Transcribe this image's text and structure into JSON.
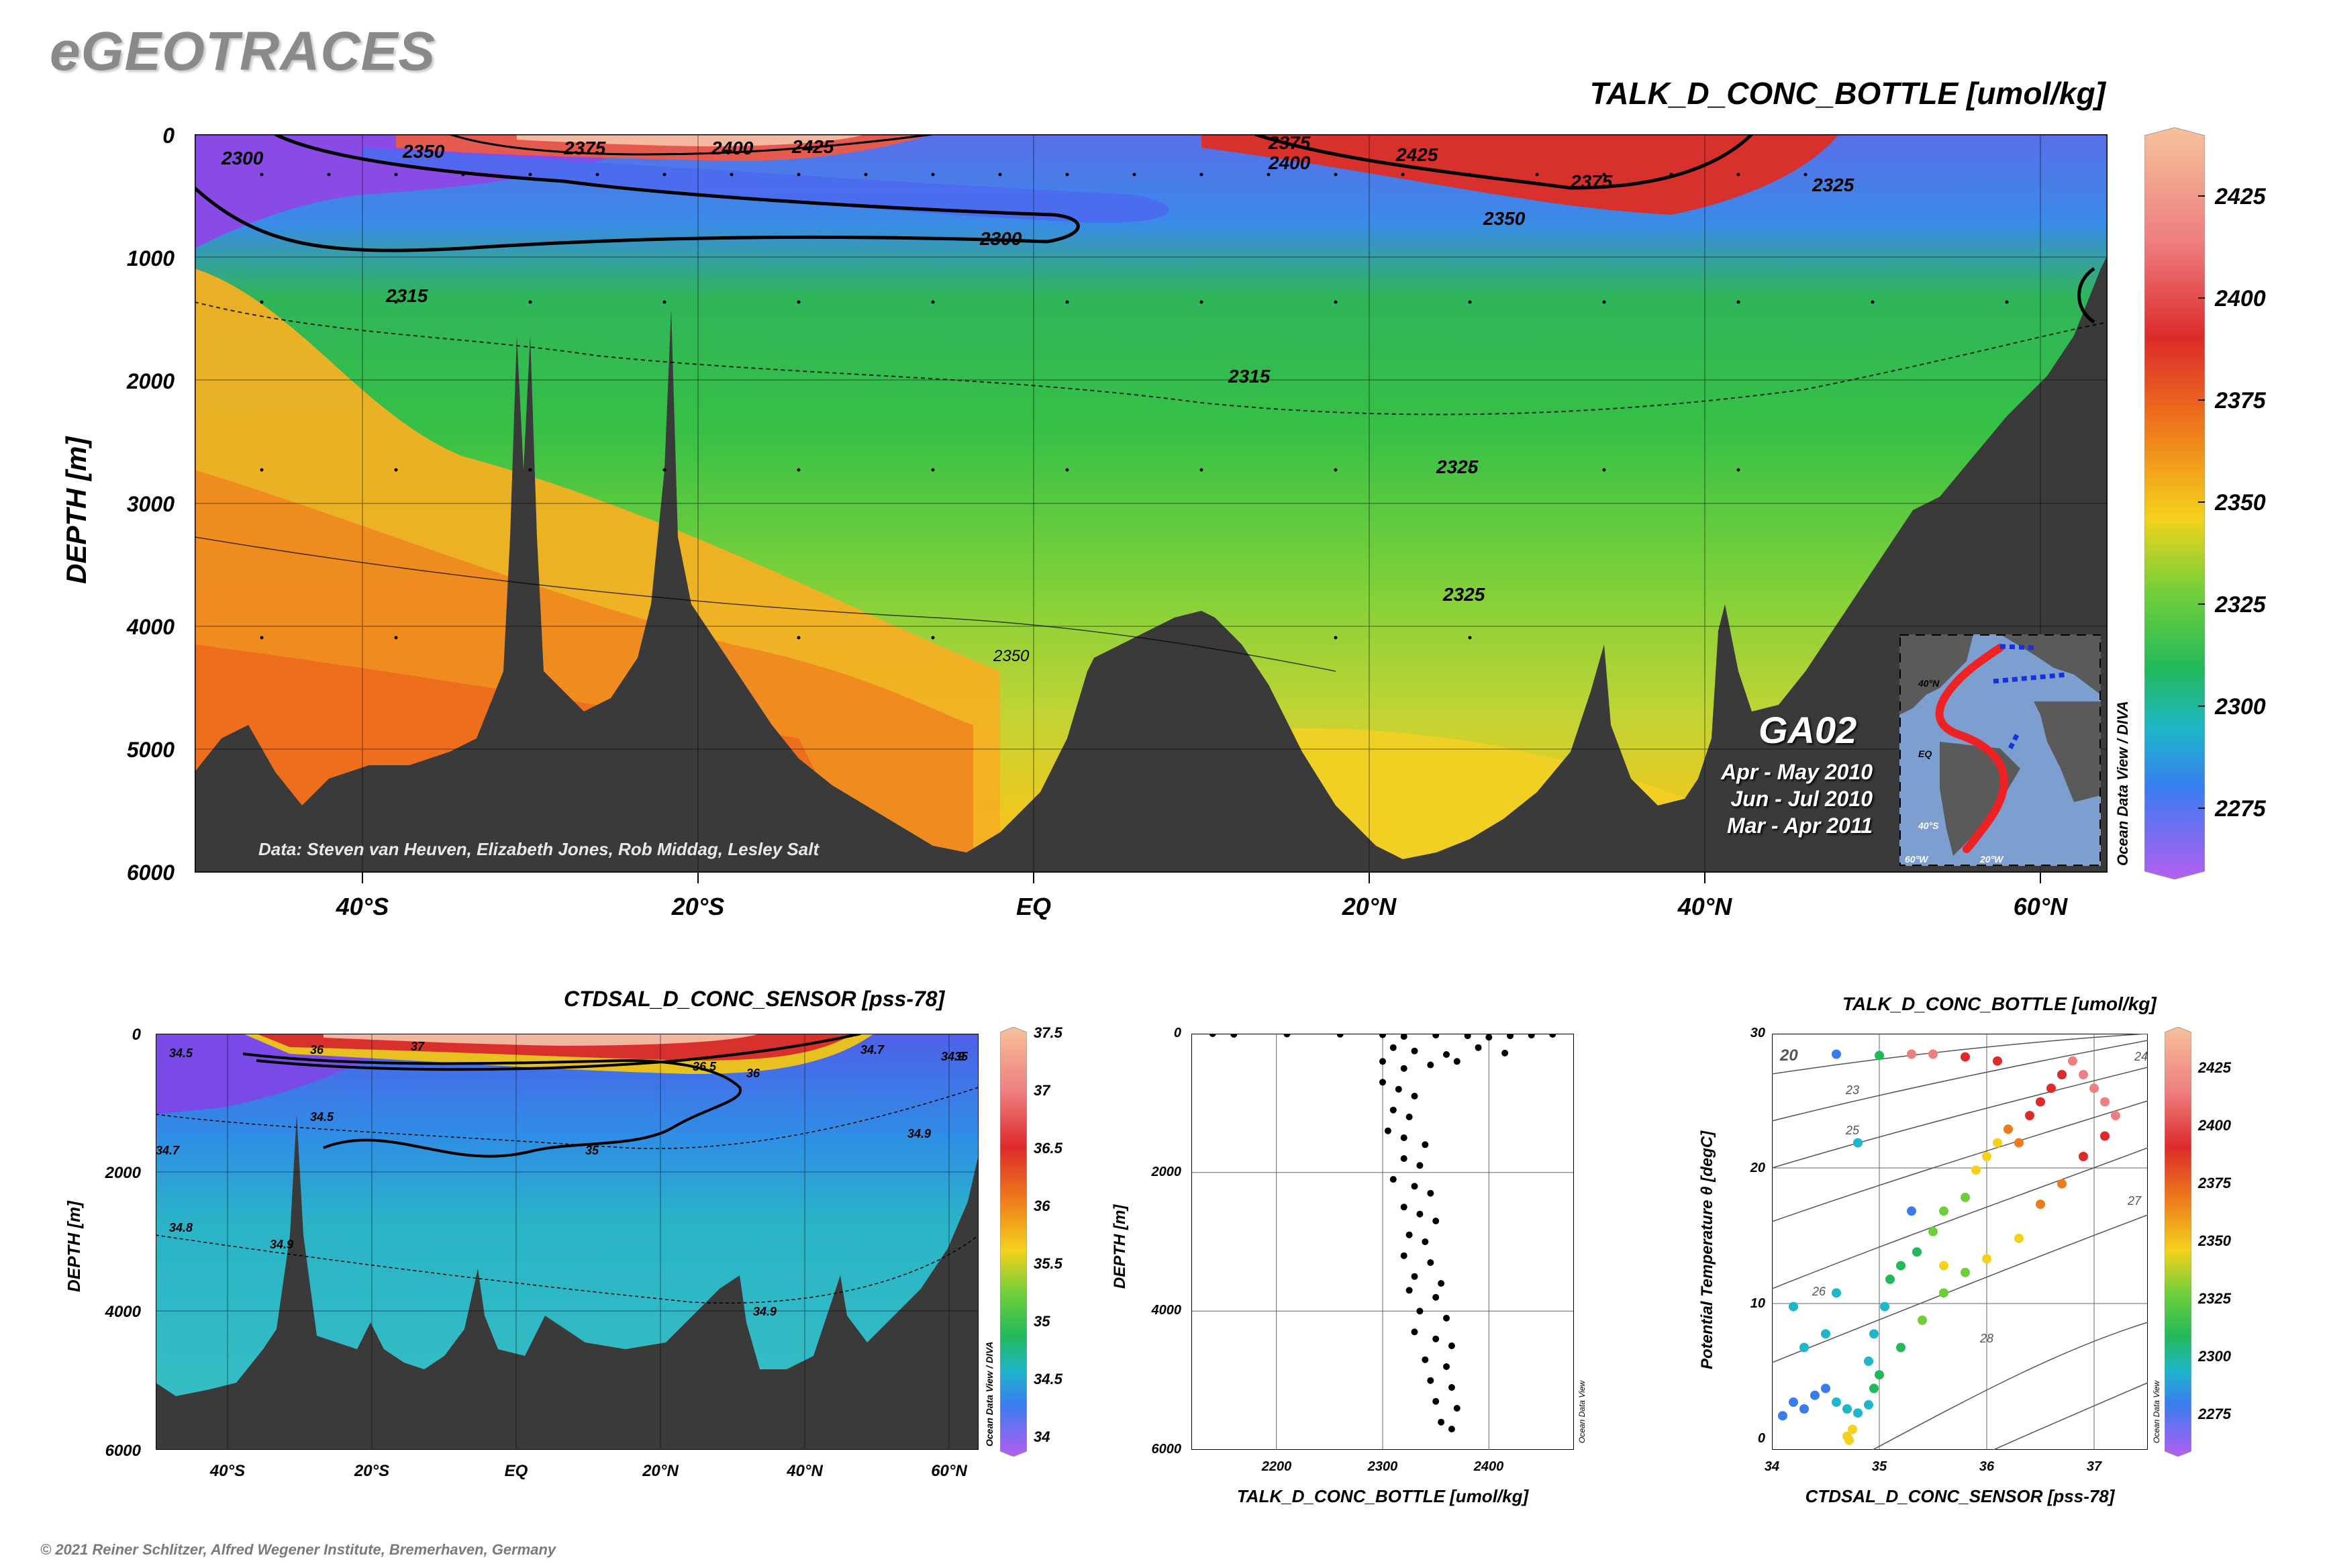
{
  "brand": "eGEOTRACES",
  "credit": "© 2021 Reiner Schlitzer, Alfred Wegener Institute, Bremerhaven, Germany",
  "chart_data": [
    {
      "id": "main_section",
      "type": "heatmap",
      "title": "TALK_D_CONC_BOTTLE [umol/kg]",
      "ylabel": "DEPTH [m]",
      "yticks": [
        "0",
        "1000",
        "2000",
        "3000",
        "4000",
        "5000",
        "6000"
      ],
      "xticks": [
        "40°S",
        "20°S",
        "EQ",
        "20°N",
        "40°N",
        "60°N"
      ],
      "ylim": [
        6000,
        0
      ],
      "contour_labels": [
        "2300",
        "2350",
        "2375",
        "2400",
        "2425",
        "2375",
        "2400",
        "2425",
        "2375",
        "2350",
        "2325",
        "2300",
        "2315",
        "2315",
        "2325",
        "2325",
        "2350"
      ],
      "data_credit": "Data: Steven van Heuven, Elizabeth Jones, Rob Middag, Lesley Salt",
      "cruise": "GA02",
      "periods": [
        "Apr - May 2010",
        "Jun - Jul 2010",
        "Mar - Apr 2011"
      ],
      "inset_labels": [
        "40°N",
        "EQ",
        "40°S",
        "60°W",
        "20°W"
      ],
      "watermark": "Ocean Data View / DIVA",
      "colorbar_ticks": [
        "2425",
        "2400",
        "2375",
        "2350",
        "2325",
        "2300",
        "2275"
      ],
      "colorbar_range": [
        2262,
        2440
      ]
    },
    {
      "id": "salinity_section",
      "type": "heatmap",
      "title": "CTDSAL_D_CONC_SENSOR [pss-78]",
      "ylabel": "DEPTH [m]",
      "yticks": [
        "0",
        "2000",
        "4000",
        "6000"
      ],
      "xticks": [
        "40°S",
        "20°S",
        "EQ",
        "20°N",
        "40°N",
        "60°N"
      ],
      "contour_labels": [
        "34.5",
        "36",
        "37",
        "36.5",
        "36",
        "34.7",
        "34.9",
        "34.5",
        "34.7",
        "35",
        "34.9",
        "34.8",
        "34.9",
        "34.9",
        "35"
      ],
      "watermark": "Ocean Data View / DIVA",
      "colorbar_ticks": [
        "37.5",
        "37",
        "36.5",
        "36",
        "35.5",
        "35",
        "34.5",
        "34"
      ]
    },
    {
      "id": "profile",
      "type": "scatter",
      "xlabel": "TALK_D_CONC_BOTTLE [umol/kg]",
      "ylabel": "DEPTH [m]",
      "xticks": [
        "2200",
        "2300",
        "2400"
      ],
      "yticks": [
        "0",
        "2000",
        "4000",
        "6000"
      ],
      "xlim": [
        2120,
        2480
      ],
      "ylim": [
        6000,
        0
      ],
      "points": [
        [
          2140,
          0
        ],
        [
          2160,
          10
        ],
        [
          2210,
          5
        ],
        [
          2260,
          8
        ],
        [
          2300,
          15
        ],
        [
          2320,
          40
        ],
        [
          2350,
          20
        ],
        [
          2380,
          30
        ],
        [
          2400,
          50
        ],
        [
          2420,
          30
        ],
        [
          2440,
          20
        ],
        [
          2460,
          10
        ],
        [
          2310,
          200
        ],
        [
          2330,
          250
        ],
        [
          2360,
          300
        ],
        [
          2390,
          200
        ],
        [
          2415,
          280
        ],
        [
          2300,
          400
        ],
        [
          2320,
          500
        ],
        [
          2345,
          450
        ],
        [
          2370,
          400
        ],
        [
          2300,
          700
        ],
        [
          2315,
          800
        ],
        [
          2330,
          900
        ],
        [
          2310,
          1100
        ],
        [
          2325,
          1200
        ],
        [
          2305,
          1400
        ],
        [
          2320,
          1500
        ],
        [
          2340,
          1600
        ],
        [
          2320,
          1800
        ],
        [
          2335,
          1900
        ],
        [
          2310,
          2100
        ],
        [
          2330,
          2200
        ],
        [
          2345,
          2300
        ],
        [
          2320,
          2500
        ],
        [
          2335,
          2600
        ],
        [
          2350,
          2700
        ],
        [
          2325,
          2900
        ],
        [
          2340,
          3000
        ],
        [
          2320,
          3200
        ],
        [
          2345,
          3300
        ],
        [
          2330,
          3500
        ],
        [
          2355,
          3600
        ],
        [
          2325,
          3700
        ],
        [
          2350,
          3800
        ],
        [
          2335,
          4000
        ],
        [
          2360,
          4100
        ],
        [
          2330,
          4300
        ],
        [
          2350,
          4400
        ],
        [
          2365,
          4500
        ],
        [
          2340,
          4700
        ],
        [
          2360,
          4800
        ],
        [
          2345,
          5000
        ],
        [
          2365,
          5100
        ],
        [
          2350,
          5300
        ],
        [
          2370,
          5400
        ],
        [
          2355,
          5600
        ],
        [
          2365,
          5700
        ]
      ],
      "watermark": "Ocean Data View"
    },
    {
      "id": "ts_plot",
      "type": "scatter",
      "title": "TALK_D_CONC_BOTTLE [umol/kg]",
      "xlabel": "CTDSAL_D_CONC_SENSOR [pss-78]",
      "ylabel": "Potential Temperature θ [degC]",
      "xticks": [
        "34",
        "35",
        "36",
        "37"
      ],
      "yticks": [
        "0",
        "10",
        "20",
        "30"
      ],
      "xlim": [
        34,
        37.5
      ],
      "ylim": [
        -0.5,
        30
      ],
      "isopycnal_labels": [
        "20",
        "23",
        "24",
        "25",
        "26",
        "27",
        "28"
      ],
      "points": [
        [
          34.1,
          2.0,
          2280
        ],
        [
          34.2,
          3.0,
          2285
        ],
        [
          34.3,
          2.5,
          2290
        ],
        [
          34.4,
          3.5,
          2295
        ],
        [
          34.5,
          4.0,
          2298
        ],
        [
          34.6,
          3.0,
          2300
        ],
        [
          34.7,
          2.5,
          2310
        ],
        [
          34.8,
          2.2,
          2315
        ],
        [
          34.9,
          2.8,
          2318
        ],
        [
          34.95,
          4.0,
          2320
        ],
        [
          34.9,
          6.0,
          2318
        ],
        [
          35.0,
          5.0,
          2322
        ],
        [
          34.95,
          8.0,
          2310
        ],
        [
          35.05,
          10.0,
          2315
        ],
        [
          35.1,
          12.0,
          2325
        ],
        [
          35.2,
          13.0,
          2328
        ],
        [
          35.35,
          14.0,
          2330
        ],
        [
          35.5,
          15.5,
          2335
        ],
        [
          35.6,
          17.0,
          2340
        ],
        [
          35.8,
          18.0,
          2345
        ],
        [
          35.9,
          20.0,
          2350
        ],
        [
          36.0,
          21.0,
          2360
        ],
        [
          36.1,
          22.0,
          2365
        ],
        [
          36.2,
          23.0,
          2370
        ],
        [
          36.3,
          22.0,
          2380
        ],
        [
          36.4,
          24.0,
          2390
        ],
        [
          36.5,
          25.0,
          2400
        ],
        [
          36.6,
          26.0,
          2405
        ],
        [
          36.7,
          27.0,
          2410
        ],
        [
          36.8,
          28.0,
          2415
        ],
        [
          36.9,
          27.0,
          2420
        ],
        [
          37.0,
          26.0,
          2425
        ],
        [
          37.1,
          25.0,
          2428
        ],
        [
          37.2,
          24.0,
          2430
        ],
        [
          36.3,
          15.0,
          2360
        ],
        [
          36.5,
          17.5,
          2370
        ],
        [
          36.7,
          19.0,
          2380
        ],
        [
          36.9,
          21.0,
          2390
        ],
        [
          37.1,
          22.5,
          2400
        ],
        [
          35.6,
          11.0,
          2335
        ],
        [
          35.8,
          12.5,
          2345
        ],
        [
          36.0,
          13.5,
          2350
        ],
        [
          34.7,
          0.5,
          2350
        ],
        [
          34.72,
          0.2,
          2352
        ],
        [
          34.75,
          1.0,
          2355
        ],
        [
          35.3,
          28.5,
          2420
        ],
        [
          35.5,
          28.5,
          2425
        ],
        [
          35.8,
          28.3,
          2400
        ],
        [
          36.1,
          28.0,
          2410
        ],
        [
          35.0,
          28.4,
          2330
        ],
        [
          34.8,
          22.0,
          2300
        ],
        [
          35.3,
          17.0,
          2290
        ],
        [
          34.6,
          28.5,
          2280
        ],
        [
          34.2,
          10.0,
          2305
        ],
        [
          34.3,
          7.0,
          2300
        ],
        [
          35.2,
          7.0,
          2330
        ],
        [
          35.4,
          9.0,
          2340
        ],
        [
          35.6,
          13.0,
          2350
        ],
        [
          34.5,
          8.0,
          2305
        ],
        [
          34.6,
          11.0,
          2312
        ]
      ],
      "watermark": "Ocean Data View",
      "colorbar_ticks": [
        "2425",
        "2400",
        "2375",
        "2350",
        "2325",
        "2300",
        "2275"
      ]
    }
  ]
}
